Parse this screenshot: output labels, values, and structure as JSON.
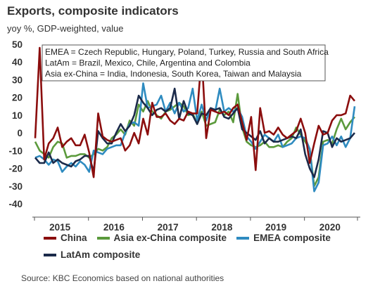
{
  "title": "Exports, composite indicators",
  "subtitle": "yoy %, GDP-weighted, value",
  "source": "Source: KBC Economics based on national authorities",
  "chart_data": {
    "type": "line",
    "title": "Exports, composite indicators",
    "subtitle": "yoy %, GDP-weighted, value",
    "ylim": [
      -40,
      50
    ],
    "yticks": [
      -40,
      -30,
      -20,
      -10,
      0,
      10,
      20,
      30,
      40,
      50
    ],
    "xlim": [
      "2015-01",
      "2020-12"
    ],
    "xticklabels": [
      "2015",
      "2016",
      "2017",
      "2018",
      "2019",
      "2020"
    ],
    "grid": false,
    "legend_position": "bottom",
    "annotation_lines": [
      "EMEA = Czech Republic, Hungary, Poland, Turkey, Russia and South Africa",
      "LatAm = Brazil, Mexico, Chile, Argentina and Colombia",
      "Asia ex-China = India, Indonesia, South Korea, Taiwan and Malaysia"
    ],
    "x": [
      "2015-01",
      "2015-02",
      "2015-03",
      "2015-04",
      "2015-05",
      "2015-06",
      "2015-07",
      "2015-08",
      "2015-09",
      "2015-10",
      "2015-11",
      "2015-12",
      "2016-01",
      "2016-02",
      "2016-03",
      "2016-04",
      "2016-05",
      "2016-06",
      "2016-07",
      "2016-08",
      "2016-09",
      "2016-10",
      "2016-11",
      "2016-12",
      "2017-01",
      "2017-02",
      "2017-03",
      "2017-04",
      "2017-05",
      "2017-06",
      "2017-07",
      "2017-08",
      "2017-09",
      "2017-10",
      "2017-11",
      "2017-12",
      "2018-01",
      "2018-02",
      "2018-03",
      "2018-04",
      "2018-05",
      "2018-06",
      "2018-07",
      "2018-08",
      "2018-09",
      "2018-10",
      "2018-11",
      "2018-12",
      "2019-01",
      "2019-02",
      "2019-03",
      "2019-04",
      "2019-05",
      "2019-06",
      "2019-07",
      "2019-08",
      "2019-09",
      "2019-10",
      "2019-11",
      "2019-12",
      "2020-01",
      "2020-02",
      "2020-03",
      "2020-04",
      "2020-05",
      "2020-06",
      "2020-07",
      "2020-08",
      "2020-09",
      "2020-10",
      "2020-11",
      "2020-12"
    ],
    "series": [
      {
        "name": "China",
        "color": "#8B0D0D",
        "values": [
          -3,
          48,
          -15,
          -6,
          -3,
          3,
          -8,
          -5,
          -3,
          -7,
          -7,
          -1,
          -11,
          -25,
          11,
          -2,
          -4,
          -5,
          -4,
          -3,
          -10,
          -7,
          0,
          -6,
          8,
          -1,
          17,
          9,
          9,
          11,
          7,
          5,
          8,
          7,
          12,
          11,
          11,
          44,
          -3,
          13,
          12,
          11,
          12,
          10,
          14,
          16,
          6,
          -4,
          9,
          -21,
          14,
          0,
          1,
          -1,
          3,
          -1,
          -3,
          -1,
          1,
          8,
          0,
          -17,
          -6,
          4,
          -1,
          0,
          7,
          10,
          10,
          11,
          21,
          18
        ]
      },
      {
        "name": "Asia ex-China composite",
        "color": "#5B9A3C",
        "values": [
          -5,
          -10,
          -12,
          -14,
          -8,
          -5,
          -6,
          -14,
          -13,
          -13,
          -12,
          -12,
          -14,
          -12,
          -9,
          -10,
          -8,
          -3,
          -1,
          2,
          -1,
          7,
          4,
          16,
          12,
          18,
          12,
          10,
          8,
          12,
          13,
          15,
          17,
          15,
          10,
          11,
          5,
          12,
          4,
          5,
          6,
          13,
          10,
          12,
          6,
          22,
          3,
          -5,
          -7,
          -8,
          -7,
          -5,
          -8,
          -8,
          -7,
          -8,
          -5,
          -3,
          3,
          -1,
          -5,
          -9,
          -30,
          -25,
          -5,
          -4,
          -6,
          2,
          8,
          2,
          6,
          9
        ]
      },
      {
        "name": "EMEA composite",
        "color": "#2E8BC0",
        "values": [
          -14,
          -13,
          -15,
          -18,
          -15,
          -16,
          -22,
          -19,
          -17,
          -19,
          -16,
          -18,
          -22,
          -10,
          -11,
          -12,
          -9,
          -8,
          -7,
          -7,
          0,
          5,
          6,
          4,
          28,
          14,
          15,
          16,
          21,
          12,
          17,
          11,
          17,
          12,
          14,
          25,
          7,
          16,
          7,
          14,
          12,
          25,
          12,
          14,
          12,
          14,
          9,
          -2,
          -5,
          -9,
          -5,
          -1,
          -3,
          -5,
          -1,
          -8,
          -7,
          -6,
          -3,
          -2,
          -3,
          -9,
          -33,
          -28,
          -7,
          -6,
          -2,
          -7,
          -2,
          -8,
          -3,
          15
        ]
      },
      {
        "name": "LatAm composite",
        "color": "#1B2A4A",
        "values": [
          -14,
          -17,
          -17,
          -11,
          -17,
          -15,
          -17,
          -18,
          -19,
          -16,
          -15,
          -13,
          -13,
          -22,
          1,
          -3,
          -6,
          -6,
          0,
          5,
          1,
          4,
          10,
          21,
          17,
          14,
          10,
          13,
          14,
          12,
          14,
          25,
          8,
          18,
          11,
          10,
          5,
          11,
          10,
          14,
          13,
          14,
          9,
          8,
          11,
          14,
          2,
          0,
          -2,
          -4,
          1,
          -6,
          -3,
          -5,
          -5,
          -4,
          -3,
          -2,
          -3,
          2,
          -12,
          -20,
          -25,
          -15,
          1,
          0,
          -8,
          -3,
          -5,
          -4,
          -3,
          0
        ]
      }
    ]
  }
}
